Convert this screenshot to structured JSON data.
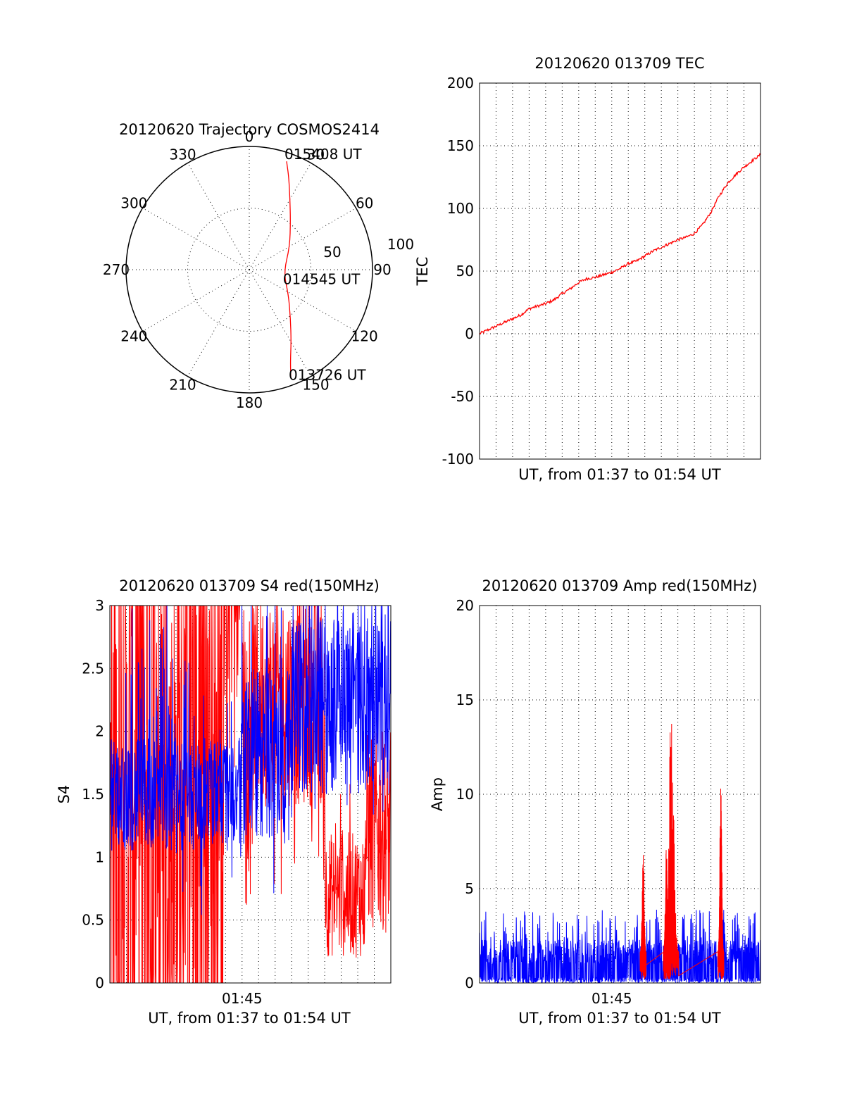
{
  "chart_data": [
    {
      "id": "trajectory",
      "type": "polar",
      "title": "20120620 Trajectory COSMOS2414",
      "angle_labels": [
        "0",
        "30",
        "60",
        "90",
        "120",
        "150",
        "180",
        "210",
        "240",
        "270",
        "300",
        "330"
      ],
      "radial_labels": [
        "50",
        "100"
      ],
      "rmax": 100,
      "grid": true,
      "series": [
        {
          "color": "#ff0000",
          "points": [
            {
              "az": 159,
              "el_r": 94
            },
            {
              "az": 156,
              "el_r": 82
            },
            {
              "az": 150,
              "el_r": 68
            },
            {
              "az": 140,
              "el_r": 52
            },
            {
              "az": 123,
              "el_r": 38
            },
            {
              "az": 95,
              "el_r": 28
            },
            {
              "az": 60,
              "el_r": 38
            },
            {
              "az": 40,
              "el_r": 52
            },
            {
              "az": 30,
              "el_r": 66
            },
            {
              "az": 23,
              "el_r": 82
            },
            {
              "az": 19,
              "el_r": 93
            }
          ]
        }
      ],
      "annotations": [
        {
          "text": "015408 UT",
          "az": 19,
          "el_r": 93
        },
        {
          "text": "014545 UT",
          "az": 95,
          "el_r": 28
        },
        {
          "text": "013726 UT",
          "az": 159,
          "el_r": 94
        }
      ]
    },
    {
      "id": "tec",
      "type": "line",
      "title": "20120620 013709 TEC",
      "xlabel": "UT, from 01:37 to 01:54 UT",
      "ylabel": "TEC",
      "ylim": [
        -100,
        200
      ],
      "yticks": [
        -100,
        -50,
        0,
        50,
        100,
        150,
        200
      ],
      "xlim": [
        0,
        17
      ],
      "grid": true,
      "series": [
        {
          "color": "#ff0000",
          "x": [
            0,
            0.5,
            1,
            1.5,
            2,
            2.5,
            3,
            3.5,
            4,
            4.5,
            5,
            5.5,
            6,
            6.5,
            7,
            7.5,
            8,
            8.5,
            9,
            9.5,
            10,
            10.5,
            11,
            11.5,
            12,
            12.5,
            13,
            13.5,
            14,
            14.5,
            15,
            15.5,
            16,
            16.5,
            17
          ],
          "y": [
            0,
            3,
            6,
            9,
            12,
            15,
            20,
            22,
            24,
            27,
            32,
            36,
            41,
            44,
            45,
            47,
            49,
            52,
            56,
            58,
            62,
            66,
            69,
            72,
            75,
            77,
            80,
            87,
            97,
            110,
            120,
            127,
            133,
            138,
            143
          ]
        }
      ]
    },
    {
      "id": "s4",
      "type": "line",
      "title": "20120620 013709 S4 red(150MHz)",
      "xlabel": "UT, from 01:37 to 01:54 UT",
      "ylabel": "S4",
      "xtick_label": "01:45",
      "xtick_value": 8,
      "xlim": [
        0,
        17
      ],
      "ylim": [
        0,
        3
      ],
      "yticks": [
        0,
        0.5,
        1,
        1.5,
        2,
        2.5,
        3
      ],
      "ytick_labels": [
        "0",
        "0.5",
        "1",
        "1.5",
        "2",
        "2.5",
        "3"
      ],
      "grid": true,
      "series": [
        {
          "color": "#ff0000",
          "style": "noise-red"
        },
        {
          "color": "#0000ff",
          "style": "noise-blue"
        }
      ]
    },
    {
      "id": "amp",
      "type": "line",
      "title": "20120620 013709 Amp red(150MHz)",
      "xlabel": "UT, from 01:37 to 01:54 UT",
      "ylabel": "Amp",
      "xtick_label": "01:45",
      "xtick_value": 8,
      "xlim": [
        0,
        17
      ],
      "ylim": [
        0,
        20
      ],
      "yticks": [
        0,
        5,
        10,
        15,
        20
      ],
      "grid": true,
      "series": [
        {
          "color": "#ff0000",
          "spikes": [
            {
              "x": 9.9,
              "peak": 7.5
            },
            {
              "x": 11.3,
              "peak": 8.2
            },
            {
              "x": 11.6,
              "peak": 15
            },
            {
              "x": 14.6,
              "peak": 11.4
            }
          ]
        },
        {
          "color": "#0000ff",
          "baseline": 1.8,
          "noise_max": 3.9
        }
      ]
    }
  ]
}
